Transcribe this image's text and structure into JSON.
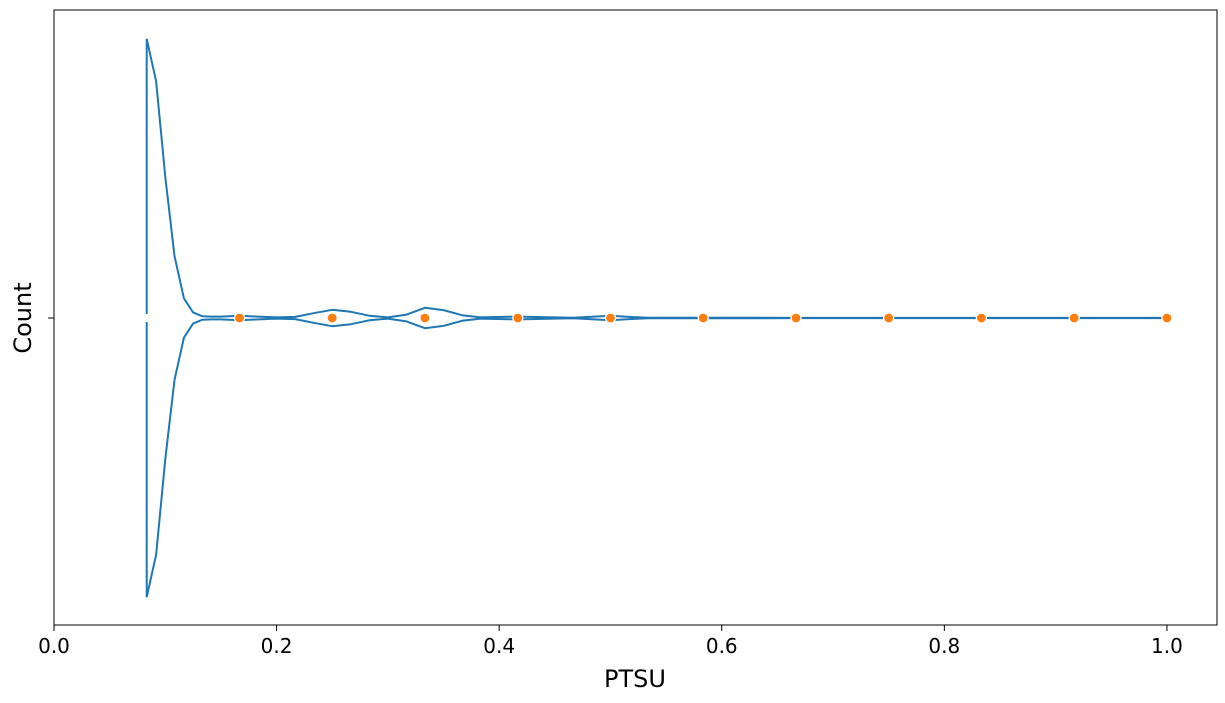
{
  "chart_data": {
    "type": "violin",
    "orientation": "horizontal",
    "xlabel": "PTSU",
    "ylabel": "Count",
    "xlim": [
      0.0,
      1.045
    ],
    "x_ticks": [
      0.0,
      0.2,
      0.4,
      0.6,
      0.8,
      1.0
    ],
    "x_tick_labels": [
      "0.0",
      "0.2",
      "0.4",
      "0.6",
      "0.8",
      "1.0"
    ],
    "grid": false,
    "colors": {
      "violin": "#1f77b4",
      "points": "#ff7f0e",
      "point_edge": "#ffffff"
    },
    "density_profile": {
      "x": [
        0.0833,
        0.0917,
        0.1,
        0.1083,
        0.1167,
        0.125,
        0.1333,
        0.1417,
        0.15,
        0.1667,
        0.1833,
        0.2,
        0.2167,
        0.2333,
        0.25,
        0.2667,
        0.2833,
        0.3,
        0.3167,
        0.3333,
        0.35,
        0.3667,
        0.3833,
        0.4167,
        0.45,
        0.4667,
        0.5,
        0.5167,
        0.5333,
        0.5833,
        0.6,
        0.6667,
        1.0
      ],
      "half_width": [
        0.99,
        0.84,
        0.5,
        0.22,
        0.07,
        0.02,
        0.006,
        0.005,
        0.005,
        0.008,
        0.005,
        0.002,
        0.004,
        0.017,
        0.029,
        0.022,
        0.008,
        0.002,
        0.012,
        0.036,
        0.028,
        0.01,
        0.002,
        0.005,
        0.002,
        0.001,
        0.008,
        0.004,
        0.001,
        0.001,
        0.001,
        0.0005,
        0.0005
      ]
    },
    "points": [
      {
        "x": 0.1667,
        "count": 0
      },
      {
        "x": 0.25,
        "count": 0
      },
      {
        "x": 0.3333,
        "count": 0
      },
      {
        "x": 0.4167,
        "count": 0
      },
      {
        "x": 0.5,
        "count": 0
      },
      {
        "x": 0.5833,
        "count": 0
      },
      {
        "x": 0.6667,
        "count": 0
      },
      {
        "x": 0.75,
        "count": 0
      },
      {
        "x": 0.8333,
        "count": 0
      },
      {
        "x": 0.9167,
        "count": 0
      },
      {
        "x": 1.0,
        "count": 0
      }
    ]
  }
}
